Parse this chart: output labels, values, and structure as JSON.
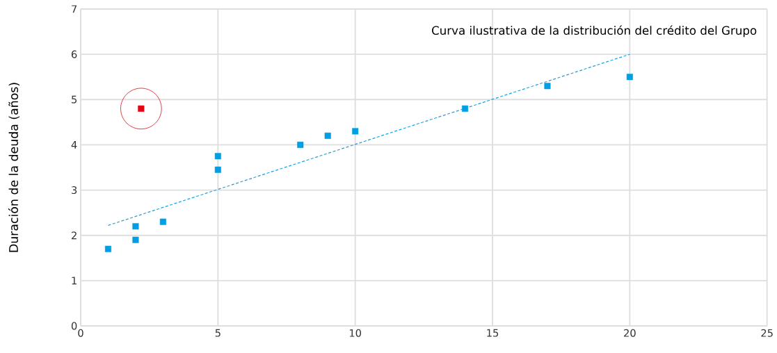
{
  "chart_data": {
    "type": "scatter",
    "title": "Curva ilustrativa de la distribución del crédito del Grupo",
    "ylabel": "Duración de la deuda (años)",
    "xlim": [
      0,
      25
    ],
    "ylim": [
      0,
      7
    ],
    "xticks": [
      0,
      5,
      10,
      15,
      20,
      25
    ],
    "yticks": [
      0,
      1,
      2,
      3,
      4,
      5,
      6,
      7
    ],
    "grid": true,
    "marker": "square",
    "series": [
      {
        "color": "#009fe3",
        "x": [
          1,
          2,
          2,
          3,
          5,
          5,
          8,
          9,
          10,
          14,
          17,
          20
        ],
        "values": [
          1.7,
          1.9,
          2.2,
          2.3,
          3.45,
          3.75,
          4.0,
          4.2,
          4.3,
          4.8,
          5.3,
          5.5
        ]
      },
      {
        "color": "#e30613",
        "x": [
          2.2
        ],
        "values": [
          4.8
        ]
      },
      {
        "type": "line",
        "color": "#1a9fe0",
        "line_style": "dashed",
        "marker": "none",
        "x": [
          1,
          20
        ],
        "values": [
          2.22,
          6.0
        ]
      }
    ]
  }
}
